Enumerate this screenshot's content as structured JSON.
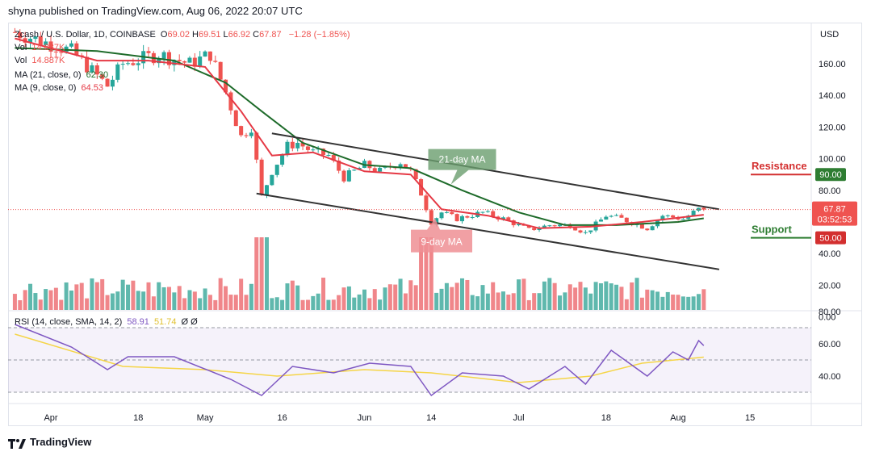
{
  "header": {
    "publisher_line": "shyna published on TradingView.com, Aug 06, 2022 20:07 UTC"
  },
  "footer": {
    "brand": "TradingView"
  },
  "legend": {
    "symbol": "Zcash / U.S. Dollar, 1D, COINBASE",
    "ohlc": [
      {
        "k": "O",
        "v": "69.02"
      },
      {
        "k": "H",
        "v": "69.51"
      },
      {
        "k": "L",
        "v": "66.92"
      },
      {
        "k": "C",
        "v": "67.87"
      }
    ],
    "change": "−1.28 (−1.85%)",
    "vol1_label": "Vol",
    "vol1_value": "14.887K",
    "vol2_label": "Vol",
    "vol2_value": "14.887K",
    "ma21_label": "MA (21, close, 0)",
    "ma21_value": "62.30",
    "ma9_label": "MA (9, close, 0)",
    "ma9_value": "64.53",
    "rsi_label": "RSI (14, close, SMA, 14, 2)",
    "rsi_value": "58.91",
    "rsi_sma_value": "51.74",
    "rsi_extra": "Ø  Ø"
  },
  "colors": {
    "up": "#26a69a",
    "down": "#ef5350",
    "vol_up": "#5fb8ad",
    "vol_down": "#f0868a",
    "ma21": "#1e6b2a",
    "ma9": "#e53945",
    "rsi": "#7e57c2",
    "rsi_sma": "#f5d547",
    "resistance": "#d32f2f",
    "support": "#2e7d32",
    "price_line": "#ef5350",
    "trend": "#333333"
  },
  "chart_data": {
    "type": "candlestick",
    "price_axis": {
      "unit": "USD",
      "ticks": [
        "160.00",
        "140.00",
        "120.00",
        "100.00",
        "80.00",
        "60.00",
        "40.00",
        "20.00",
        "0.00"
      ],
      "tick_values": [
        160,
        140,
        120,
        100,
        80,
        60,
        40,
        20,
        0
      ]
    },
    "time_axis": {
      "labels": [
        "Apr",
        "18",
        "May",
        "16",
        "Jun",
        "14",
        "Jul",
        "18",
        "Aug",
        "15"
      ],
      "label_dates": [
        "2022-04-01",
        "2022-04-18",
        "2022-05-01",
        "2022-05-16",
        "2022-06-01",
        "2022-06-14",
        "2022-07-01",
        "2022-07-18",
        "2022-08-01",
        "2022-08-15"
      ]
    },
    "current_price": {
      "label": "67.87",
      "value": 67.87,
      "countdown": "03:52:53"
    },
    "levels": [
      {
        "name": "Resistance",
        "label": "90.00",
        "value": 90
      },
      {
        "name": "Support",
        "label": "50.00",
        "value": 50
      }
    ],
    "annotations": [
      {
        "text": "21-day MA",
        "date": "2022-06-20",
        "price": 100
      },
      {
        "text": "9-day MA",
        "date": "2022-06-16",
        "price": 52
      }
    ],
    "trend_lines": [
      {
        "from": {
          "date": "2022-05-14",
          "price": 116
        },
        "to": {
          "date": "2022-08-09",
          "price": 68
        }
      },
      {
        "from": {
          "date": "2022-05-11",
          "price": 78
        },
        "to": {
          "date": "2022-08-09",
          "price": 30
        }
      }
    ],
    "ohlc_anchor_points": [
      {
        "date": "2022-03-25",
        "price": 180
      },
      {
        "date": "2022-04-05",
        "price": 168
      },
      {
        "date": "2022-04-12",
        "price": 146
      },
      {
        "date": "2022-04-15",
        "price": 160
      },
      {
        "date": "2022-04-22",
        "price": 166
      },
      {
        "date": "2022-04-28",
        "price": 160
      },
      {
        "date": "2022-05-02",
        "price": 166
      },
      {
        "date": "2022-05-05",
        "price": 142
      },
      {
        "date": "2022-05-08",
        "price": 114
      },
      {
        "date": "2022-05-10",
        "price": 120
      },
      {
        "date": "2022-05-12",
        "price": 76
      },
      {
        "date": "2022-05-14",
        "price": 92
      },
      {
        "date": "2022-05-17",
        "price": 108
      },
      {
        "date": "2022-05-19",
        "price": 110
      },
      {
        "date": "2022-05-22",
        "price": 104
      },
      {
        "date": "2022-05-25",
        "price": 102
      },
      {
        "date": "2022-05-28",
        "price": 88
      },
      {
        "date": "2022-06-01",
        "price": 96
      },
      {
        "date": "2022-06-04",
        "price": 92
      },
      {
        "date": "2022-06-08",
        "price": 98
      },
      {
        "date": "2022-06-10",
        "price": 92
      },
      {
        "date": "2022-06-12",
        "price": 78
      },
      {
        "date": "2022-06-14",
        "price": 60
      },
      {
        "date": "2022-06-16",
        "price": 66
      },
      {
        "date": "2022-06-19",
        "price": 62
      },
      {
        "date": "2022-06-24",
        "price": 66
      },
      {
        "date": "2022-06-28",
        "price": 62
      },
      {
        "date": "2022-07-03",
        "price": 55
      },
      {
        "date": "2022-07-07",
        "price": 58
      },
      {
        "date": "2022-07-11",
        "price": 58
      },
      {
        "date": "2022-07-14",
        "price": 53
      },
      {
        "date": "2022-07-18",
        "price": 64
      },
      {
        "date": "2022-07-21",
        "price": 62
      },
      {
        "date": "2022-07-26",
        "price": 56
      },
      {
        "date": "2022-07-29",
        "price": 64
      },
      {
        "date": "2022-08-02",
        "price": 62
      },
      {
        "date": "2022-08-05",
        "price": 68
      },
      {
        "date": "2022-08-06",
        "price": 67.87
      }
    ],
    "ma21_points": [
      {
        "date": "2022-03-25",
        "price": 170
      },
      {
        "date": "2022-04-10",
        "price": 168
      },
      {
        "date": "2022-04-25",
        "price": 162
      },
      {
        "date": "2022-05-05",
        "price": 148
      },
      {
        "date": "2022-05-12",
        "price": 130
      },
      {
        "date": "2022-05-20",
        "price": 110
      },
      {
        "date": "2022-06-01",
        "price": 96
      },
      {
        "date": "2022-06-10",
        "price": 94
      },
      {
        "date": "2022-06-20",
        "price": 80
      },
      {
        "date": "2022-07-01",
        "price": 66
      },
      {
        "date": "2022-07-10",
        "price": 58
      },
      {
        "date": "2022-07-20",
        "price": 58
      },
      {
        "date": "2022-08-01",
        "price": 60
      },
      {
        "date": "2022-08-06",
        "price": 62.3
      }
    ],
    "ma9_points": [
      {
        "date": "2022-03-25",
        "price": 176
      },
      {
        "date": "2022-04-10",
        "price": 162
      },
      {
        "date": "2022-04-20",
        "price": 162
      },
      {
        "date": "2022-05-01",
        "price": 158
      },
      {
        "date": "2022-05-08",
        "price": 130
      },
      {
        "date": "2022-05-14",
        "price": 102
      },
      {
        "date": "2022-05-22",
        "price": 104
      },
      {
        "date": "2022-06-01",
        "price": 92
      },
      {
        "date": "2022-06-10",
        "price": 90
      },
      {
        "date": "2022-06-16",
        "price": 68
      },
      {
        "date": "2022-06-25",
        "price": 64
      },
      {
        "date": "2022-07-05",
        "price": 56
      },
      {
        "date": "2022-07-15",
        "price": 57
      },
      {
        "date": "2022-07-25",
        "price": 60
      },
      {
        "date": "2022-08-06",
        "price": 64.53
      }
    ],
    "volume_peaks": [
      {
        "date": "2022-05-12",
        "value": "high"
      },
      {
        "date": "2022-06-13",
        "value": "high"
      }
    ],
    "rsi": {
      "ticks": [
        "80.00",
        "60.00",
        "40.00"
      ],
      "tick_values": [
        80,
        60,
        40
      ],
      "band": [
        30,
        70
      ],
      "points": [
        {
          "date": "2022-03-25",
          "value": 72
        },
        {
          "date": "2022-04-05",
          "value": 58
        },
        {
          "date": "2022-04-12",
          "value": 44
        },
        {
          "date": "2022-04-16",
          "value": 52
        },
        {
          "date": "2022-04-25",
          "value": 52
        },
        {
          "date": "2022-05-06",
          "value": 38
        },
        {
          "date": "2022-05-12",
          "value": 28
        },
        {
          "date": "2022-05-18",
          "value": 46
        },
        {
          "date": "2022-05-26",
          "value": 42
        },
        {
          "date": "2022-06-02",
          "value": 48
        },
        {
          "date": "2022-06-10",
          "value": 46
        },
        {
          "date": "2022-06-14",
          "value": 28
        },
        {
          "date": "2022-06-20",
          "value": 42
        },
        {
          "date": "2022-06-28",
          "value": 40
        },
        {
          "date": "2022-07-03",
          "value": 32
        },
        {
          "date": "2022-07-10",
          "value": 46
        },
        {
          "date": "2022-07-14",
          "value": 35
        },
        {
          "date": "2022-07-19",
          "value": 56
        },
        {
          "date": "2022-07-26",
          "value": 40
        },
        {
          "date": "2022-07-31",
          "value": 55
        },
        {
          "date": "2022-08-03",
          "value": 50
        },
        {
          "date": "2022-08-05",
          "value": 62
        },
        {
          "date": "2022-08-06",
          "value": 58.91
        }
      ],
      "sma_points": [
        {
          "date": "2022-03-25",
          "value": 66
        },
        {
          "date": "2022-04-15",
          "value": 46
        },
        {
          "date": "2022-05-01",
          "value": 44
        },
        {
          "date": "2022-05-15",
          "value": 40
        },
        {
          "date": "2022-06-01",
          "value": 44
        },
        {
          "date": "2022-06-14",
          "value": 42
        },
        {
          "date": "2022-07-01",
          "value": 36
        },
        {
          "date": "2022-07-15",
          "value": 40
        },
        {
          "date": "2022-07-25",
          "value": 48
        },
        {
          "date": "2022-08-06",
          "value": 51.74
        }
      ]
    }
  }
}
